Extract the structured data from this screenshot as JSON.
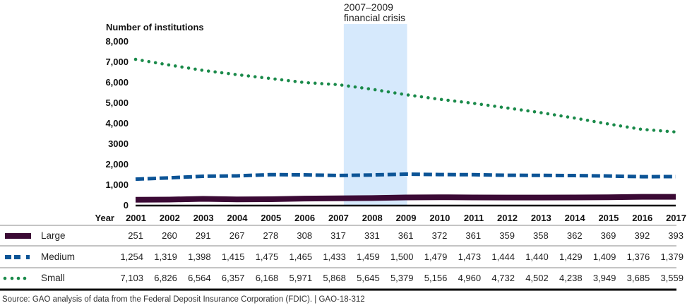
{
  "chart_data": {
    "type": "line",
    "title": "",
    "ylabel": "Number of institutions",
    "xlabel": "Year",
    "ylim": [
      0,
      8000
    ],
    "y_ticks": [
      "0",
      "1,000",
      "2,000",
      "3000",
      "4,000",
      "5,000",
      "6,000",
      "7,000",
      "8,000"
    ],
    "y_tick_values": [
      0,
      1000,
      2000,
      3000,
      4000,
      5000,
      6000,
      7000,
      8000
    ],
    "x": [
      2001,
      2002,
      2003,
      2004,
      2005,
      2006,
      2007,
      2008,
      2009,
      2010,
      2011,
      2012,
      2013,
      2014,
      2015,
      2016,
      2017
    ],
    "grid": false,
    "annotation": {
      "line1": "2007–2009",
      "line2": "financial crisis",
      "start": 2007,
      "end": 2009,
      "color": "#d6e9fc"
    },
    "series": [
      {
        "name": "Large",
        "style": "solid",
        "color": "#3b0a35",
        "values": [
          251,
          260,
          291,
          267,
          278,
          308,
          317,
          331,
          361,
          372,
          361,
          359,
          358,
          362,
          369,
          392,
          393
        ],
        "labels": [
          "251",
          "260",
          "291",
          "267",
          "278",
          "308",
          "317",
          "331",
          "361",
          "372",
          "361",
          "359",
          "358",
          "362",
          "369",
          "392",
          "393"
        ]
      },
      {
        "name": "Medium",
        "style": "dashed",
        "color": "#0c5496",
        "values": [
          1254,
          1319,
          1398,
          1415,
          1475,
          1465,
          1433,
          1459,
          1500,
          1479,
          1473,
          1444,
          1440,
          1429,
          1409,
          1376,
          1379
        ],
        "labels": [
          "1,254",
          "1,319",
          "1,398",
          "1,415",
          "1,475",
          "1,465",
          "1,433",
          "1,459",
          "1,500",
          "1,479",
          "1,473",
          "1,444",
          "1,440",
          "1,429",
          "1,409",
          "1,376",
          "1,379"
        ]
      },
      {
        "name": "Small",
        "style": "dotted",
        "color": "#1a8a4a",
        "values": [
          7103,
          6826,
          6564,
          6357,
          6168,
          5971,
          5868,
          5645,
          5379,
          5156,
          4960,
          4732,
          4502,
          4238,
          3949,
          3685,
          3559
        ],
        "labels": [
          "7,103",
          "6,826",
          "6,564",
          "6,357",
          "6,168",
          "5,971",
          "5,868",
          "5,645",
          "5,379",
          "5,156",
          "4,960",
          "4,732",
          "4,502",
          "4,238",
          "3,949",
          "3,685",
          "3,559"
        ]
      }
    ]
  },
  "table": {
    "year_header": "Year"
  },
  "source": "Source: GAO analysis of data from the Federal Deposit Insurance Corporation (FDIC).  |  GAO-18-312"
}
